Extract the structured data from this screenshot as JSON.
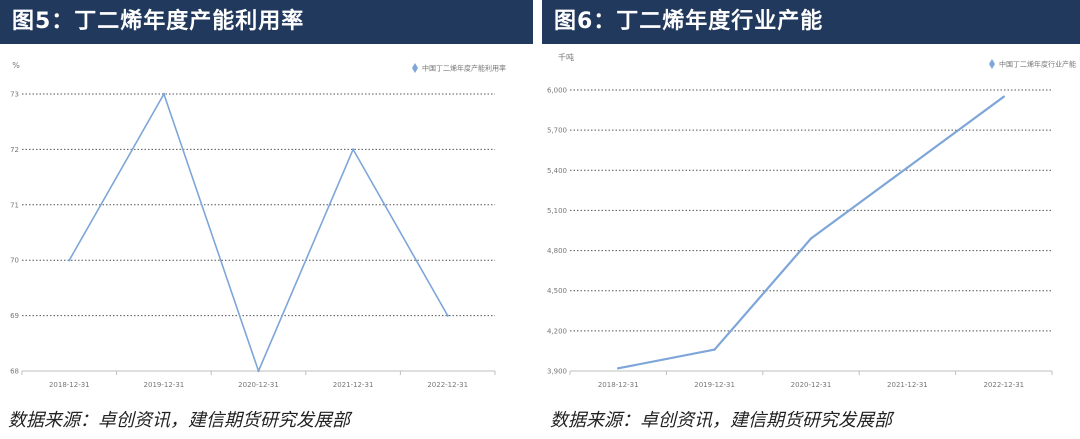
{
  "charts": [
    {
      "title": "图5：丁二烯年度产能利用率",
      "source": "数据来源：卓创资讯，建信期货研究发展部"
    },
    {
      "title": "图6：丁二烯年度行业产能",
      "source": "数据来源：卓创资讯，建信期货研究发展部"
    }
  ],
  "chart_data": [
    {
      "type": "line",
      "ylabel": "%",
      "categories": [
        "2018-12-31",
        "2019-12-31",
        "2020-12-31",
        "2021-12-31",
        "2022-12-31"
      ],
      "series": [
        {
          "name": "中国丁二烯年度产能利用率",
          "values": [
            70,
            73,
            68,
            72,
            69
          ]
        }
      ],
      "ylim": [
        68,
        73
      ],
      "yticks": [
        "68",
        "69",
        "70",
        "71",
        "72",
        "73"
      ],
      "grid": true,
      "legend": "top-right",
      "color": "#7ea6d8"
    },
    {
      "type": "line",
      "ylabel": "千吨",
      "categories": [
        "2018-12-31",
        "2019-12-31",
        "2020-12-31",
        "2021-12-31",
        "2022-12-31"
      ],
      "series": [
        {
          "name": "中国丁二烯年度行业产能",
          "values": [
            3920,
            4060,
            4890,
            5420,
            5950
          ]
        }
      ],
      "ylim": [
        3900,
        6000
      ],
      "yticks": [
        "3,900",
        "4,200",
        "4,500",
        "4,800",
        "5,100",
        "5,400",
        "5,700",
        "6,000"
      ],
      "grid": true,
      "legend": "top-right",
      "color": "#7ea6d8"
    }
  ]
}
